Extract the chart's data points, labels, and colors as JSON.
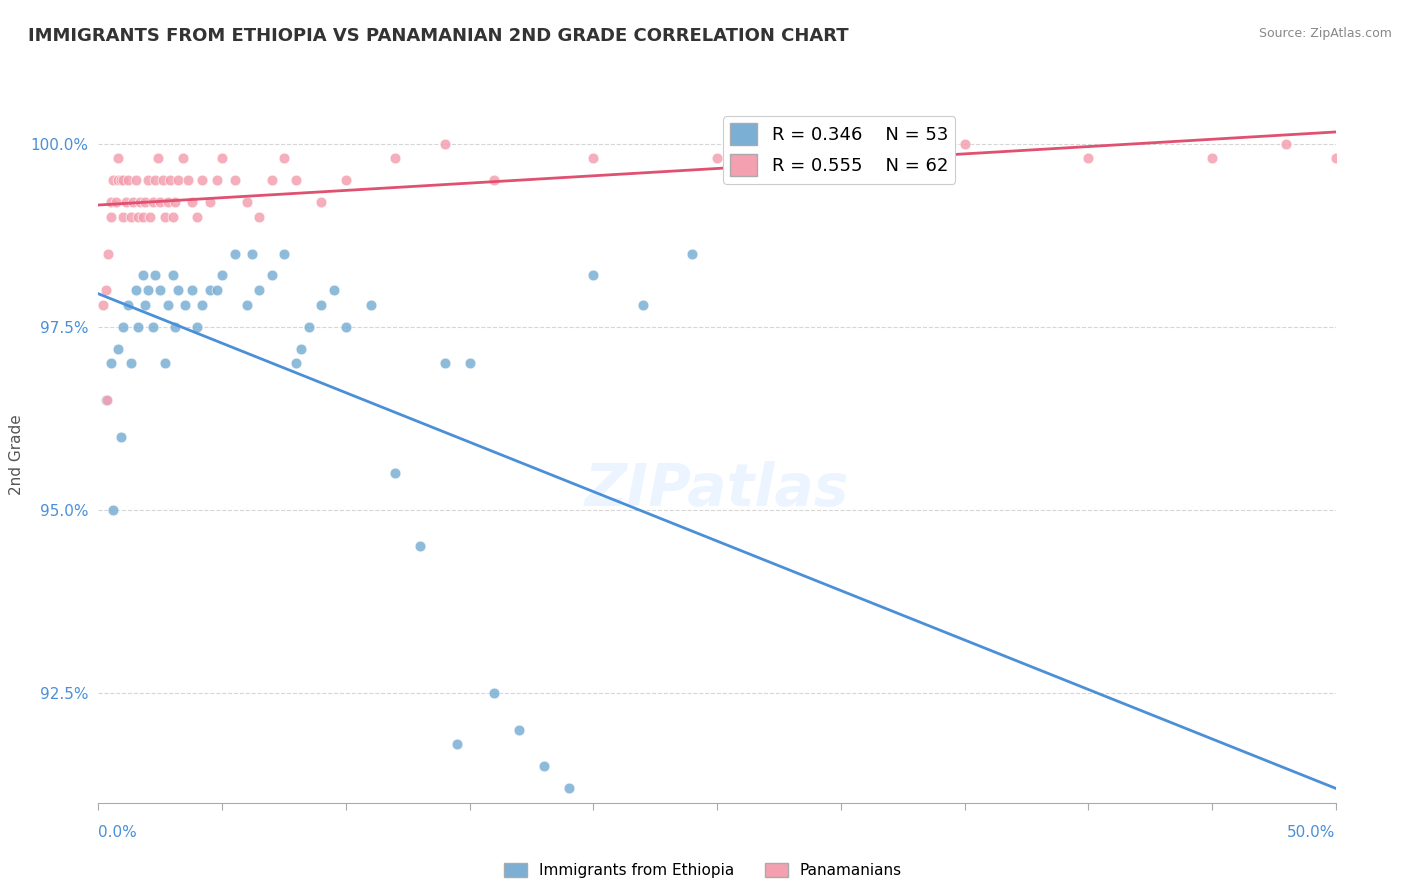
{
  "title": "IMMIGRANTS FROM ETHIOPIA VS PANAMANIAN 2ND GRADE CORRELATION CHART",
  "source": "Source: ZipAtlas.com",
  "ylabel": "2nd Grade",
  "xlim": [
    0.0,
    50.0
  ],
  "ylim": [
    91.0,
    100.5
  ],
  "yticks": [
    92.5,
    95.0,
    97.5,
    100.0
  ],
  "ytick_labels": [
    "92.5%",
    "95.0%",
    "97.5%",
    "100.0%"
  ],
  "blue_R": 0.346,
  "blue_N": 53,
  "pink_R": 0.555,
  "pink_N": 62,
  "blue_color": "#7BAFD4",
  "pink_color": "#F4A0B0",
  "blue_label": "Immigrants from Ethiopia",
  "pink_label": "Panamanians",
  "blue_scatter_x": [
    0.3,
    0.5,
    0.8,
    1.0,
    1.2,
    1.5,
    1.8,
    2.0,
    2.2,
    2.5,
    2.8,
    3.0,
    3.2,
    3.5,
    3.8,
    4.0,
    4.2,
    4.5,
    5.0,
    5.5,
    6.0,
    6.5,
    7.0,
    7.5,
    8.0,
    8.5,
    9.0,
    9.5,
    10.0,
    11.0,
    12.0,
    13.0,
    14.0,
    15.0,
    16.0,
    17.0,
    18.0,
    20.0,
    22.0,
    24.0,
    0.6,
    0.9,
    1.3,
    1.6,
    1.9,
    2.3,
    2.7,
    3.1,
    4.8,
    6.2,
    8.2,
    14.5,
    19.0
  ],
  "blue_scatter_y": [
    96.5,
    97.0,
    97.2,
    97.5,
    97.8,
    98.0,
    98.2,
    98.0,
    97.5,
    98.0,
    97.8,
    98.2,
    98.0,
    97.8,
    98.0,
    97.5,
    97.8,
    98.0,
    98.2,
    98.5,
    97.8,
    98.0,
    98.2,
    98.5,
    97.0,
    97.5,
    97.8,
    98.0,
    97.5,
    97.8,
    95.5,
    94.5,
    97.0,
    97.0,
    92.5,
    92.0,
    91.5,
    98.2,
    97.8,
    98.5,
    95.0,
    96.0,
    97.0,
    97.5,
    97.8,
    98.2,
    97.0,
    97.5,
    98.0,
    98.5,
    97.2,
    91.8,
    91.2
  ],
  "pink_scatter_x": [
    0.2,
    0.3,
    0.4,
    0.5,
    0.5,
    0.6,
    0.7,
    0.8,
    0.8,
    0.9,
    1.0,
    1.0,
    1.1,
    1.2,
    1.3,
    1.4,
    1.5,
    1.6,
    1.7,
    1.8,
    1.9,
    2.0,
    2.1,
    2.2,
    2.3,
    2.4,
    2.5,
    2.6,
    2.7,
    2.8,
    2.9,
    3.0,
    3.1,
    3.2,
    3.4,
    3.6,
    3.8,
    4.0,
    4.2,
    4.5,
    4.8,
    5.0,
    5.5,
    6.0,
    6.5,
    7.0,
    7.5,
    8.0,
    9.0,
    10.0,
    12.0,
    14.0,
    16.0,
    20.0,
    25.0,
    30.0,
    35.0,
    40.0,
    45.0,
    48.0,
    50.0,
    0.35
  ],
  "pink_scatter_y": [
    97.8,
    98.0,
    98.5,
    99.0,
    99.2,
    99.5,
    99.2,
    99.5,
    99.8,
    99.5,
    99.0,
    99.5,
    99.2,
    99.5,
    99.0,
    99.2,
    99.5,
    99.0,
    99.2,
    99.0,
    99.2,
    99.5,
    99.0,
    99.2,
    99.5,
    99.8,
    99.2,
    99.5,
    99.0,
    99.2,
    99.5,
    99.0,
    99.2,
    99.5,
    99.8,
    99.5,
    99.2,
    99.0,
    99.5,
    99.2,
    99.5,
    99.8,
    99.5,
    99.2,
    99.0,
    99.5,
    99.8,
    99.5,
    99.2,
    99.5,
    99.8,
    100.0,
    99.5,
    99.8,
    99.8,
    99.8,
    100.0,
    99.8,
    99.8,
    100.0,
    99.8,
    96.5
  ]
}
